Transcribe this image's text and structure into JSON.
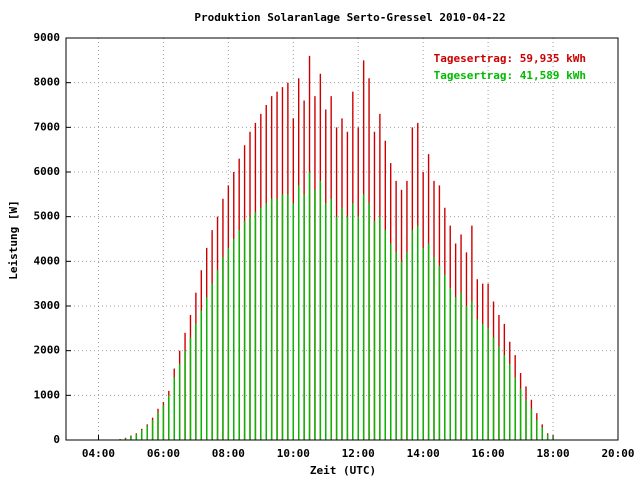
{
  "chart_data": {
    "type": "impulse",
    "title": "Produktion Solaranlage Serto-Gressel 2010-04-22",
    "xlabel": "Zeit (UTC)",
    "ylabel": "Leistung [W]",
    "xlim": [
      "03:00",
      "20:00"
    ],
    "xticks": [
      "04:00",
      "06:00",
      "08:00",
      "10:00",
      "12:00",
      "14:00",
      "16:00",
      "18:00",
      "20:00"
    ],
    "ylim": [
      0,
      9000
    ],
    "yticks": [
      0,
      1000,
      2000,
      3000,
      4000,
      5000,
      6000,
      7000,
      8000,
      9000
    ],
    "grid": true,
    "legend": "upper right",
    "x": [
      "04:40",
      "04:50",
      "05:00",
      "05:10",
      "05:20",
      "05:30",
      "05:40",
      "05:50",
      "06:00",
      "06:10",
      "06:20",
      "06:30",
      "06:40",
      "06:50",
      "07:00",
      "07:10",
      "07:20",
      "07:30",
      "07:40",
      "07:50",
      "08:00",
      "08:10",
      "08:20",
      "08:30",
      "08:40",
      "08:50",
      "09:00",
      "09:10",
      "09:20",
      "09:30",
      "09:40",
      "09:50",
      "10:00",
      "10:10",
      "10:20",
      "10:30",
      "10:40",
      "10:50",
      "11:00",
      "11:10",
      "11:20",
      "11:30",
      "11:40",
      "11:50",
      "12:00",
      "12:10",
      "12:20",
      "12:30",
      "12:40",
      "12:50",
      "13:00",
      "13:10",
      "13:20",
      "13:30",
      "13:40",
      "13:50",
      "14:00",
      "14:10",
      "14:20",
      "14:30",
      "14:40",
      "14:50",
      "15:00",
      "15:10",
      "15:20",
      "15:30",
      "15:40",
      "15:50",
      "16:00",
      "16:10",
      "16:20",
      "16:30",
      "16:40",
      "16:50",
      "17:00",
      "17:10",
      "17:20",
      "17:30",
      "17:40",
      "17:50",
      "18:00"
    ],
    "series": [
      {
        "name": "Tagesertrag: 59,935 kWh",
        "color": "#cc0000",
        "values": [
          20,
          50,
          100,
          150,
          250,
          350,
          500,
          700,
          850,
          1100,
          1600,
          2000,
          2400,
          2800,
          3300,
          3800,
          4300,
          4700,
          5000,
          5400,
          5700,
          6000,
          6300,
          6600,
          6900,
          7100,
          7300,
          7500,
          7700,
          7800,
          7900,
          8000,
          7200,
          8100,
          7600,
          8600,
          7700,
          8200,
          7400,
          7700,
          7000,
          7200,
          6900,
          7800,
          7000,
          8500,
          8100,
          6900,
          7300,
          6700,
          6200,
          5800,
          5600,
          5800,
          7000,
          7100,
          6000,
          6400,
          5800,
          5700,
          5200,
          4800,
          4400,
          4600,
          4200,
          4800,
          3600,
          3500,
          3500,
          3100,
          2800,
          2600,
          2200,
          1900,
          1500,
          1200,
          900,
          600,
          350,
          150,
          50
        ]
      },
      {
        "name": "Tagesertrag: 41,589 kWh",
        "color": "#00bb00",
        "values": [
          10,
          40,
          80,
          130,
          220,
          320,
          450,
          620,
          780,
          1000,
          1400,
          1700,
          2000,
          2300,
          2600,
          2900,
          3200,
          3500,
          3800,
          4100,
          4300,
          4500,
          4700,
          4900,
          5000,
          5100,
          5200,
          5300,
          5400,
          5400,
          5500,
          5500,
          5300,
          5700,
          5500,
          6000,
          5600,
          5800,
          5300,
          5400,
          5000,
          5200,
          5000,
          5300,
          5000,
          5500,
          5300,
          4900,
          5000,
          4700,
          4400,
          4200,
          4000,
          4200,
          4700,
          4800,
          4300,
          4400,
          4100,
          3900,
          3700,
          3400,
          3200,
          3300,
          3000,
          3100,
          2700,
          2600,
          2500,
          2300,
          2100,
          1900,
          1700,
          1400,
          1150,
          900,
          700,
          450,
          280,
          120,
          40
        ]
      }
    ]
  }
}
